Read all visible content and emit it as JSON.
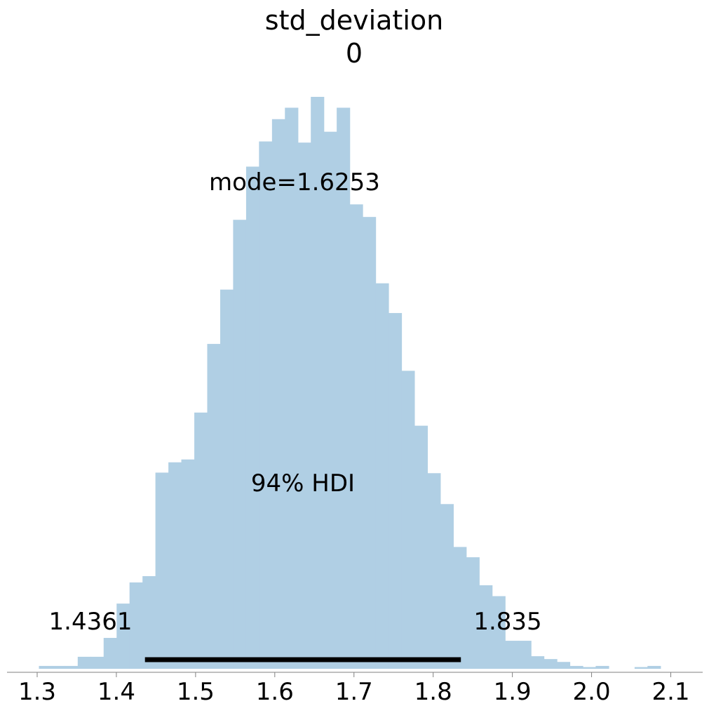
{
  "chart_data": {
    "type": "bar",
    "title": "std_deviation",
    "subtitle": "0",
    "xlabel": "",
    "ylabel": "",
    "xlim": [
      1.27,
      2.14
    ],
    "ylim": [
      0,
      1
    ],
    "grid": false,
    "bin_edges": [
      1.3022,
      1.3185,
      1.3349,
      1.3512,
      1.3676,
      1.3839,
      1.4003,
      1.4166,
      1.433,
      1.4493,
      1.4657,
      1.482,
      1.4984,
      1.5147,
      1.5311,
      1.5474,
      1.5638,
      1.5801,
      1.5965,
      1.6128,
      1.6292,
      1.6455,
      1.6619,
      1.6782,
      1.6946,
      1.7109,
      1.7273,
      1.7436,
      1.76,
      1.7763,
      1.7927,
      1.809,
      1.8254,
      1.8417,
      1.8581,
      1.8744,
      1.8908,
      1.9071,
      1.9235,
      1.9398,
      1.9562,
      1.9725,
      1.9889,
      2.0052,
      2.0216,
      2.0379,
      2.0543,
      2.0706,
      2.087,
      2.1033
    ],
    "values": [
      0.005,
      0.005,
      0.005,
      0.021,
      0.021,
      0.054,
      0.114,
      0.151,
      0.162,
      0.343,
      0.361,
      0.366,
      0.448,
      0.568,
      0.663,
      0.785,
      0.878,
      0.922,
      0.961,
      0.981,
      0.92,
      1.0,
      0.939,
      0.981,
      0.812,
      0.79,
      0.674,
      0.622,
      0.521,
      0.425,
      0.342,
      0.288,
      0.213,
      0.195,
      0.146,
      0.127,
      0.049,
      0.049,
      0.022,
      0.017,
      0.012,
      0.005,
      0.003,
      0.005,
      0.0,
      0.0,
      0.003,
      0.005,
      0.0
    ],
    "bar_color": "#b0cfe4",
    "hdi": {
      "low": 1.4361,
      "high": 1.835,
      "label": "94% HDI",
      "low_label": "1.4361",
      "high_label": "1.835",
      "color": "#000000"
    },
    "mode_label": "mode=1.6253",
    "xticks": [
      1.3,
      1.4,
      1.5,
      1.6,
      1.7,
      1.8,
      1.9,
      2.0,
      2.1
    ],
    "xtick_labels": [
      "1.3",
      "1.4",
      "1.5",
      "1.6",
      "1.7",
      "1.8",
      "1.9",
      "2.0",
      "2.1"
    ],
    "axis_color": "#808080"
  }
}
